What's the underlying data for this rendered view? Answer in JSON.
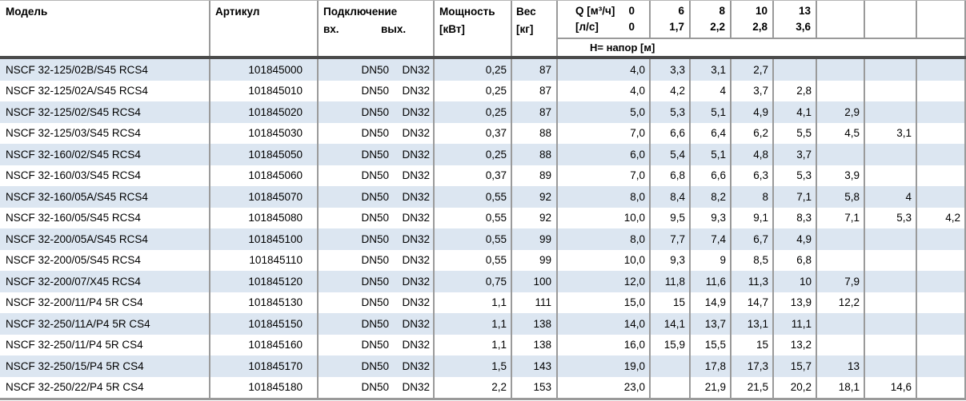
{
  "header": {
    "model": "Модель",
    "article": "Артикул",
    "connection": "Подключение",
    "connection_in": "вх.",
    "connection_out": "вых.",
    "power_line1": "Мощность",
    "power_line2": "[кВт]",
    "weight_line1": "Вес",
    "weight_line2": "[кг]"
  },
  "flow": {
    "q_label": "Q [м³/ч]",
    "q_first": "0",
    "ls_label": "[л/с]",
    "ls_first": "0",
    "q": [
      "6",
      "8",
      "10",
      "13",
      "",
      "",
      ""
    ],
    "ls": [
      "1,7",
      "2,2",
      "2,8",
      "3,6",
      "",
      "",
      ""
    ],
    "head_label": "Н= напор [м]"
  },
  "colors": {
    "row_alt": "#dce6f1",
    "grid": "#9a9a9a",
    "header_rule": "#4b4b4b"
  },
  "table": {
    "rows": [
      {
        "model": "NSCF 32-125/02B/S45 RCS4",
        "article": "101845000",
        "conn_in": "DN50",
        "conn_out": "DN32",
        "power": "0,25",
        "weight": "87",
        "head": [
          "4,0",
          "3,3",
          "3,1",
          "2,7",
          "",
          "",
          "",
          ""
        ]
      },
      {
        "model": "NSCF 32-125/02A/S45 RCS4",
        "article": "101845010",
        "conn_in": "DN50",
        "conn_out": "DN32",
        "power": "0,25",
        "weight": "87",
        "head": [
          "4,0",
          "4,2",
          "4",
          "3,7",
          "2,8",
          "",
          "",
          ""
        ]
      },
      {
        "model": "NSCF 32-125/02/S45 RCS4",
        "article": "101845020",
        "conn_in": "DN50",
        "conn_out": "DN32",
        "power": "0,25",
        "weight": "87",
        "head": [
          "5,0",
          "5,3",
          "5,1",
          "4,9",
          "4,1",
          "2,9",
          "",
          ""
        ]
      },
      {
        "model": "NSCF 32-125/03/S45 RCS4",
        "article": "101845030",
        "conn_in": "DN50",
        "conn_out": "DN32",
        "power": "0,37",
        "weight": "88",
        "head": [
          "7,0",
          "6,6",
          "6,4",
          "6,2",
          "5,5",
          "4,5",
          "3,1",
          ""
        ]
      },
      {
        "model": "NSCF 32-160/02/S45 RCS4",
        "article": "101845050",
        "conn_in": "DN50",
        "conn_out": "DN32",
        "power": "0,25",
        "weight": "88",
        "head": [
          "6,0",
          "5,4",
          "5,1",
          "4,8",
          "3,7",
          "",
          "",
          ""
        ]
      },
      {
        "model": "NSCF 32-160/03/S45 RCS4",
        "article": "101845060",
        "conn_in": "DN50",
        "conn_out": "DN32",
        "power": "0,37",
        "weight": "89",
        "head": [
          "7,0",
          "6,8",
          "6,6",
          "6,3",
          "5,3",
          "3,9",
          "",
          ""
        ]
      },
      {
        "model": "NSCF 32-160/05A/S45 RCS4",
        "article": "101845070",
        "conn_in": "DN50",
        "conn_out": "DN32",
        "power": "0,55",
        "weight": "92",
        "head": [
          "8,0",
          "8,4",
          "8,2",
          "8",
          "7,1",
          "5,8",
          "4",
          ""
        ]
      },
      {
        "model": "NSCF 32-160/05/S45 RCS4",
        "article": "101845080",
        "conn_in": "DN50",
        "conn_out": "DN32",
        "power": "0,55",
        "weight": "92",
        "head": [
          "10,0",
          "9,5",
          "9,3",
          "9,1",
          "8,3",
          "7,1",
          "5,3",
          "4,2"
        ]
      },
      {
        "model": "NSCF 32-200/05A/S45 RCS4",
        "article": "101845100",
        "conn_in": "DN50",
        "conn_out": "DN32",
        "power": "0,55",
        "weight": "99",
        "head": [
          "8,0",
          "7,7",
          "7,4",
          "6,7",
          "4,9",
          "",
          "",
          ""
        ]
      },
      {
        "model": "NSCF 32-200/05/S45 RCS4",
        "article": "101845110",
        "conn_in": "DN50",
        "conn_out": "DN32",
        "power": "0,55",
        "weight": "99",
        "head": [
          "10,0",
          "9,3",
          "9",
          "8,5",
          "6,8",
          "",
          "",
          ""
        ]
      },
      {
        "model": "NSCF 32-200/07/X45 RCS4",
        "article": "101845120",
        "conn_in": "DN50",
        "conn_out": "DN32",
        "power": "0,75",
        "weight": "100",
        "head": [
          "12,0",
          "11,8",
          "11,6",
          "11,3",
          "10",
          "7,9",
          "",
          ""
        ]
      },
      {
        "model": "NSCF 32-200/11/P4 5R CS4",
        "article": "101845130",
        "conn_in": "DN50",
        "conn_out": "DN32",
        "power": "1,1",
        "weight": "111",
        "head": [
          "15,0",
          "15",
          "14,9",
          "14,7",
          "13,9",
          "12,2",
          "",
          ""
        ]
      },
      {
        "model": "NSCF 32-250/11A/P4 5R CS4",
        "article": "101845150",
        "conn_in": "DN50",
        "conn_out": "DN32",
        "power": "1,1",
        "weight": "138",
        "head": [
          "14,0",
          "14,1",
          "13,7",
          "13,1",
          "11,1",
          "",
          "",
          ""
        ]
      },
      {
        "model": "NSCF 32-250/11/P4 5R CS4",
        "article": "101845160",
        "conn_in": "DN50",
        "conn_out": "DN32",
        "power": "1,1",
        "weight": "138",
        "head": [
          "16,0",
          "15,9",
          "15,5",
          "15",
          "13,2",
          "",
          "",
          ""
        ]
      },
      {
        "model": "NSCF 32-250/15/P4 5R CS4",
        "article": "101845170",
        "conn_in": "DN50",
        "conn_out": "DN32",
        "power": "1,5",
        "weight": "143",
        "head": [
          "19,0",
          "",
          "17,8",
          "17,3",
          "15,7",
          "13",
          "",
          ""
        ]
      },
      {
        "model": "NSCF 32-250/22/P4 5R CS4",
        "article": "101845180",
        "conn_in": "DN50",
        "conn_out": "DN32",
        "power": "2,2",
        "weight": "153",
        "head": [
          "23,0",
          "",
          "21,9",
          "21,5",
          "20,2",
          "18,1",
          "14,6",
          ""
        ]
      }
    ]
  }
}
